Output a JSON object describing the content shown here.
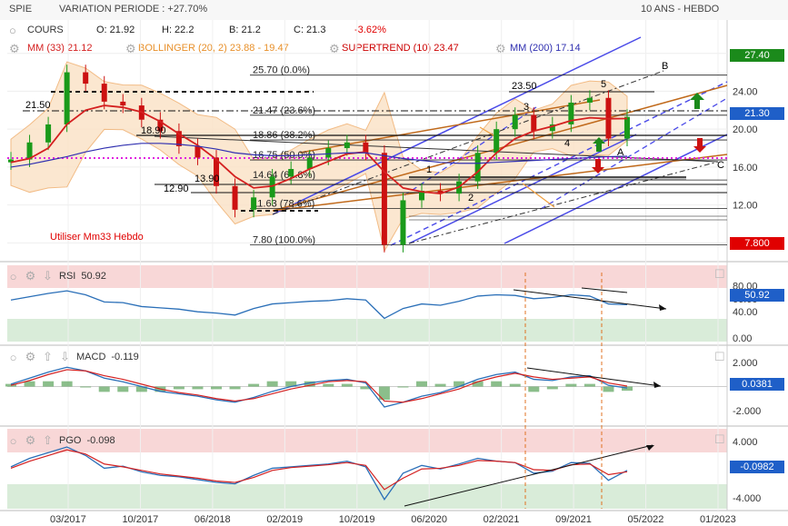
{
  "header": {
    "symbol": "SPIE",
    "variation": "VARIATION PERIODE : +27.70%",
    "period": "10 ANS - HEBDO"
  },
  "legend": {
    "cours_label": "COURS",
    "open": "O: 21.92",
    "high": "H: 22.2",
    "low": "B: 21.2",
    "close": "C: 21.3",
    "change": "-3.62%",
    "mm33": "MM (33) 21.12",
    "bollinger": "BOLLINGER (20, 2) 23.88 - 19.47",
    "supertrend": "SUPERTREND (10) 23.47",
    "mm200": "MM (200) 17.14"
  },
  "colors": {
    "up": "#1a9a1a",
    "down": "#cc1111",
    "mm33": "#d42020",
    "mm200": "#3030b0",
    "bollinger": "#f0b070",
    "supertrend": "#cc0000",
    "trend_blue": "#4a4ae8",
    "trend_orange": "#c0691a",
    "rsi": "#2a6fb8",
    "green_badge": "#1b8a1b",
    "red_badge": "#e00000",
    "blue_badge": "#1f5fc8"
  },
  "icons": [
    "circle-icon",
    "gear-icon",
    "arrow-down-icon",
    "square-icon"
  ],
  "annotations": {
    "note": "Utiliser Mm33 Hebdo",
    "level_21_50": "21.50",
    "level_18_90": "18.90",
    "level_13_90": "13.90",
    "level_12_90": "12.90",
    "level_23_50": "23.50",
    "wave_labels": [
      "1",
      "2",
      "3",
      "4",
      "5",
      "A",
      "B",
      "C"
    ]
  },
  "fibonacci": [
    {
      "label": "25.70  (0.0%)",
      "value": 25.7
    },
    {
      "label": "21.47  (23.6%)",
      "value": 21.47
    },
    {
      "label": "18.86  (38.2%)",
      "value": 18.86
    },
    {
      "label": "16.75  (50.0%)",
      "value": 16.75
    },
    {
      "label": "14.64  (61.8%)",
      "value": 14.64
    },
    {
      "label": "11.63  (78.6%)",
      "value": 11.63
    },
    {
      "label": "7.80  (100.0%)",
      "value": 7.8
    }
  ],
  "price_badges": {
    "top": "27.40",
    "current": "21.30",
    "low": "7.800"
  },
  "chart_data": [
    {
      "type": "line",
      "name": "price",
      "x_tick_labels": [
        "03/2017",
        "10/2017",
        "06/2018",
        "02/2019",
        "10/2019",
        "06/2020",
        "02/2021",
        "09/2021",
        "05/2022",
        "01/2023"
      ],
      "y_ticks": [
        8.0,
        12.0,
        16.0,
        20.0,
        24.0,
        28.0
      ],
      "ylim": [
        6.6,
        29.6
      ],
      "x": [
        "01/2017",
        "03/2017",
        "05/2017",
        "07/2017",
        "09/2017",
        "11/2017",
        "01/2018",
        "03/2018",
        "05/2018",
        "07/2018",
        "09/2018",
        "11/2018",
        "01/2019",
        "03/2019",
        "05/2019",
        "07/2019",
        "09/2019",
        "11/2019",
        "01/2020",
        "02/2020",
        "03/2020",
        "05/2020",
        "07/2020",
        "09/2020",
        "11/2020",
        "01/2021",
        "03/2021",
        "05/2021",
        "07/2021",
        "09/2021",
        "11/2021",
        "12/2021",
        "01/2022",
        "02/2022"
      ],
      "close": [
        16.8,
        18.6,
        20.5,
        26.0,
        24.8,
        22.9,
        22.5,
        21.0,
        19.8,
        18.2,
        17.0,
        14.0,
        11.5,
        12.8,
        15.0,
        15.8,
        17.0,
        18.0,
        18.6,
        17.5,
        7.8,
        12.5,
        13.5,
        13.2,
        14.5,
        17.5,
        20.0,
        21.5,
        19.8,
        20.5,
        22.8,
        23.3,
        19.0,
        21.3
      ],
      "mm33": [
        16.5,
        16.9,
        18.0,
        20.5,
        22.0,
        22.5,
        22.3,
        21.8,
        20.8,
        19.5,
        18.3,
        16.8,
        15.0,
        13.8,
        14.0,
        14.8,
        15.8,
        16.6,
        17.4,
        17.6,
        15.5,
        13.8,
        13.4,
        13.2,
        13.9,
        15.5,
        17.5,
        19.0,
        19.8,
        20.3,
        20.9,
        21.2,
        21.1,
        21.12
      ],
      "mm200": [
        16.0,
        16.3,
        16.7,
        17.1,
        17.6,
        18.0,
        18.3,
        18.5,
        18.5,
        18.4,
        18.2,
        17.9,
        17.5,
        17.3,
        17.2,
        17.2,
        17.3,
        17.4,
        17.5,
        17.5,
        17.2,
        16.9,
        16.7,
        16.5,
        16.4,
        16.4,
        16.5,
        16.6,
        16.7,
        16.8,
        16.9,
        17.0,
        17.1,
        17.14
      ]
    },
    {
      "type": "line",
      "name": "RSI",
      "value_label": "50.92",
      "y_ticks": [
        0.0,
        40.0,
        60.0,
        80.0
      ],
      "ylim": [
        0,
        100
      ],
      "values": [
        58,
        63,
        68,
        72,
        66,
        55,
        54,
        48,
        46,
        44,
        40,
        38,
        35,
        45,
        52,
        54,
        56,
        57,
        60,
        58,
        30,
        45,
        52,
        50,
        56,
        64,
        66,
        65,
        60,
        62,
        66,
        64,
        52,
        50.92
      ]
    },
    {
      "type": "line",
      "name": "MACD",
      "value_label": "-0.119",
      "badge": "0.0381",
      "y_ticks": [
        -2.0,
        2.0
      ],
      "ylim": [
        -2.6,
        2.3
      ],
      "values": [
        0.2,
        0.7,
        1.2,
        1.6,
        1.3,
        0.7,
        0.4,
        0.0,
        -0.4,
        -0.6,
        -0.8,
        -1.1,
        -1.3,
        -0.9,
        -0.4,
        0.0,
        0.3,
        0.5,
        0.6,
        0.3,
        -1.7,
        -1.3,
        -0.8,
        -0.5,
        0.0,
        0.6,
        1.0,
        1.2,
        0.6,
        0.5,
        0.8,
        0.9,
        0.1,
        -0.119
      ],
      "signal": [
        0.1,
        0.5,
        1.0,
        1.4,
        1.3,
        0.9,
        0.6,
        0.2,
        -0.2,
        -0.5,
        -0.7,
        -1.0,
        -1.2,
        -1.0,
        -0.6,
        -0.2,
        0.1,
        0.4,
        0.5,
        0.4,
        -1.2,
        -1.3,
        -1.0,
        -0.6,
        -0.2,
        0.4,
        0.8,
        1.1,
        0.8,
        0.6,
        0.7,
        0.8,
        0.3,
        0.0381
      ]
    },
    {
      "type": "line",
      "name": "PGO",
      "value_label": "-0.098",
      "badge": "-0.0982",
      "y_ticks": [
        -4.0,
        4.0
      ],
      "ylim": [
        -5.0,
        5.0
      ],
      "values": [
        0.4,
        1.6,
        2.4,
        3.2,
        2.0,
        0.2,
        0.5,
        -0.3,
        -0.8,
        -1.0,
        -1.4,
        -1.8,
        -2.0,
        -0.8,
        0.2,
        0.4,
        0.6,
        0.8,
        1.2,
        0.4,
        -4.2,
        -0.5,
        0.6,
        0.1,
        0.8,
        1.6,
        1.2,
        1.0,
        -0.5,
        -0.2,
        1.0,
        0.9,
        -1.5,
        -0.098
      ],
      "signal": [
        0.2,
        1.2,
        2.0,
        2.8,
        2.2,
        0.8,
        0.4,
        -0.1,
        -0.6,
        -0.9,
        -1.2,
        -1.6,
        -1.8,
        -1.1,
        -0.1,
        0.3,
        0.5,
        0.7,
        1.0,
        0.6,
        -2.8,
        -1.2,
        0.1,
        0.2,
        0.6,
        1.3,
        1.2,
        1.0,
        0.0,
        -0.1,
        0.7,
        0.8,
        -0.7,
        -0.3
      ]
    }
  ]
}
